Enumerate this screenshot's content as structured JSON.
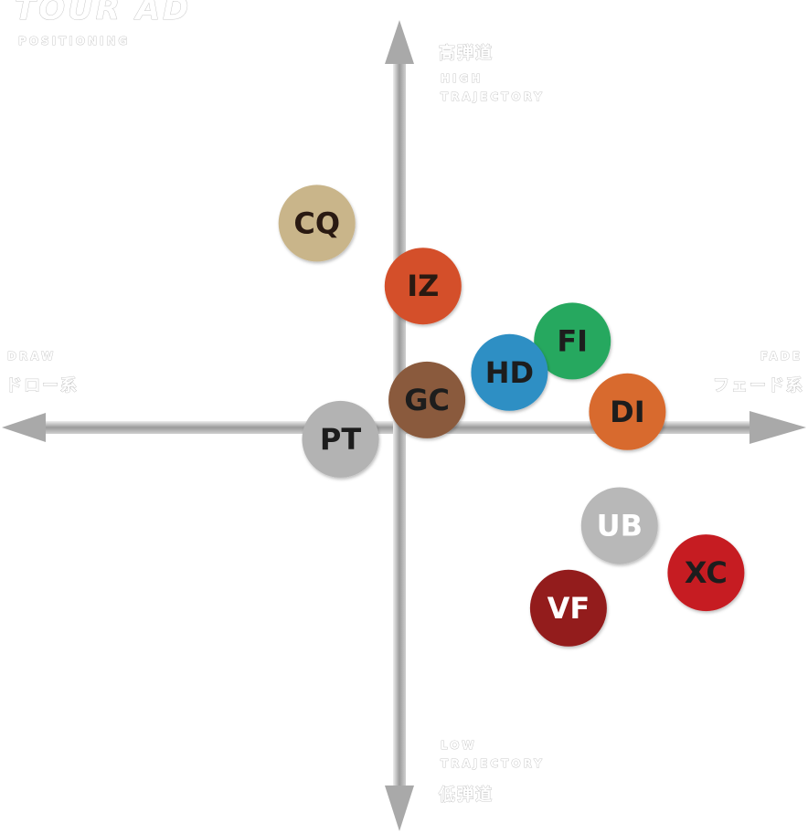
{
  "header": {
    "brand": "TOUR AD",
    "subtitle": "POSITIONING"
  },
  "axes": {
    "top_jp": "高弾道",
    "top_en_1": "HIGH",
    "top_en_2": "TRAJECTORY",
    "bottom_en_1": "LOW",
    "bottom_en_2": "TRAJECTORY",
    "bottom_jp": "低弾道",
    "left_en": "DRAW",
    "left_jp": "ドロー系",
    "right_en": "FADE",
    "right_jp": "フェード系"
  },
  "chart_data": {
    "type": "scatter",
    "title": "",
    "xlabel": "DRAW ← → FADE",
    "ylabel": "LOW TRAJECTORY ↓ ↑ HIGH TRAJECTORY",
    "xlim": [
      -10,
      10
    ],
    "ylim": [
      -10,
      10
    ],
    "grid": false,
    "points": [
      {
        "label": "CQ",
        "x": -2.1,
        "y": 5.2,
        "color": "#c9b58a",
        "text_color": "#2a1a12"
      },
      {
        "label": "IZ",
        "x": 0.6,
        "y": 3.6,
        "color": "#d4502b",
        "text_color": "#2a1a12"
      },
      {
        "label": "FI",
        "x": 4.4,
        "y": 2.2,
        "color": "#27a85e",
        "text_color": "#1d1d1d"
      },
      {
        "label": "HD",
        "x": 2.8,
        "y": 1.4,
        "color": "#2e8fc4",
        "text_color": "#1d1d1d"
      },
      {
        "label": "GC",
        "x": 0.7,
        "y": 0.7,
        "color": "#8a5a3c",
        "text_color": "#1d1d1d"
      },
      {
        "label": "DI",
        "x": 5.8,
        "y": 0.4,
        "color": "#d86a2e",
        "text_color": "#1d1d1d"
      },
      {
        "label": "PT",
        "x": -1.5,
        "y": -0.3,
        "color": "#b3b3b3",
        "text_color": "#1d1d1d"
      },
      {
        "label": "UB",
        "x": 5.6,
        "y": -2.5,
        "color": "#b8b8b8",
        "text_color": "#ffffff"
      },
      {
        "label": "XC",
        "x": 7.8,
        "y": -3.7,
        "color": "#c61d22",
        "text_color": "#1d1d1d"
      },
      {
        "label": "VF",
        "x": 4.3,
        "y": -4.6,
        "color": "#931c1f",
        "text_color": "#ffffff"
      }
    ]
  }
}
